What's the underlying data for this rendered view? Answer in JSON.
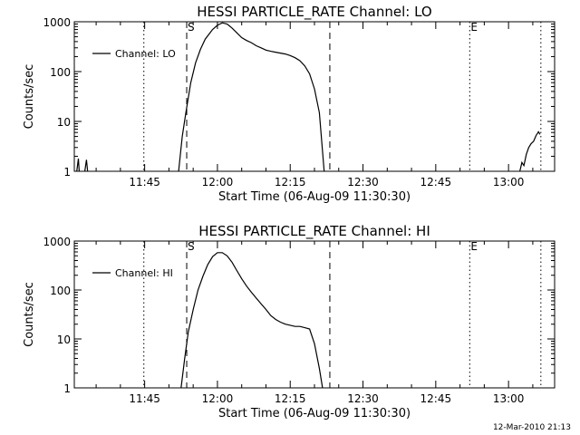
{
  "footer_timestamp": "12-Mar-2010 21:13",
  "chart_data": [
    {
      "type": "line",
      "title": "HESSI PARTICLE_RATE Channel: LO",
      "xlabel": "Start Time (06-Aug-09 11:30:30)",
      "ylabel": "Counts/sec",
      "y_scale": "log",
      "xlim": [
        "11:30:30",
        "13:09:30"
      ],
      "ylim": [
        1,
        1000
      ],
      "x_ticks": [
        "11:45",
        "12:00",
        "12:15",
        "12:30",
        "12:45",
        "13:00"
      ],
      "y_ticks": [
        "1",
        "10",
        "100",
        "1000"
      ],
      "legend": {
        "position": "top-left",
        "entries": [
          "Channel: LO"
        ]
      },
      "markers": [
        {
          "label": "S",
          "time": "11:53:40",
          "style": "dashed"
        },
        {
          "label": "",
          "time": "12:23:10",
          "style": "dashed"
        },
        {
          "label": "",
          "time": "11:44:50",
          "style": "dotted"
        },
        {
          "label": "E",
          "time": "12:52:00",
          "style": "dotted"
        },
        {
          "label": "",
          "time": "13:06:40",
          "style": "dotted"
        }
      ],
      "series": [
        {
          "name": "Channel: LO",
          "segments": [
            {
              "x": [
                "11:31:00",
                "11:31:20",
                "11:31:30"
              ],
              "y": [
                1,
                1.8,
                1
              ]
            },
            {
              "x": [
                "11:32:40",
                "11:33:00",
                "11:33:15"
              ],
              "y": [
                1,
                1.7,
                1
              ]
            },
            {
              "x": [
                "11:52:00",
                "11:52:45",
                "11:53:30",
                "11:54:30",
                "11:55:30",
                "11:56:30",
                "11:57:30",
                "11:59:00",
                "12:00:00",
                "12:01:00",
                "12:02:00",
                "12:03:00",
                "12:04:00",
                "12:05:00",
                "12:06:00",
                "12:07:00",
                "12:08:00",
                "12:09:00",
                "12:10:00",
                "12:11:00",
                "12:12:00",
                "12:13:00",
                "12:14:00",
                "12:15:00",
                "12:16:00",
                "12:17:00",
                "12:18:00",
                "12:19:00",
                "12:20:00",
                "12:21:00",
                "12:22:00"
              ],
              "y": [
                1,
                5,
                15,
                60,
                150,
                280,
                450,
                700,
                850,
                950,
                900,
                750,
                600,
                480,
                420,
                380,
                330,
                300,
                270,
                255,
                245,
                235,
                225,
                210,
                190,
                165,
                130,
                90,
                45,
                15,
                1
              ]
            },
            {
              "x": [
                "13:02:20",
                "13:02:45",
                "13:03:10",
                "13:03:40",
                "13:04:10",
                "13:04:40",
                "13:05:10",
                "13:05:40",
                "13:06:10",
                "13:06:30"
              ],
              "y": [
                1,
                1.5,
                1.3,
                2.2,
                3,
                3.6,
                4,
                5.2,
                6.2,
                5.5
              ]
            }
          ]
        }
      ]
    },
    {
      "type": "line",
      "title": "HESSI PARTICLE_RATE Channel: HI",
      "xlabel": "Start Time (06-Aug-09 11:30:30)",
      "ylabel": "Counts/sec",
      "y_scale": "log",
      "xlim": [
        "11:30:30",
        "13:09:30"
      ],
      "ylim": [
        1,
        1000
      ],
      "x_ticks": [
        "11:45",
        "12:00",
        "12:15",
        "12:30",
        "12:45",
        "13:00"
      ],
      "y_ticks": [
        "1",
        "10",
        "100",
        "1000"
      ],
      "legend": {
        "position": "top-left",
        "entries": [
          "Channel: HI"
        ]
      },
      "markers": [
        {
          "label": "S",
          "time": "11:53:40",
          "style": "dashed"
        },
        {
          "label": "",
          "time": "12:23:10",
          "style": "dashed"
        },
        {
          "label": "",
          "time": "11:44:50",
          "style": "dotted"
        },
        {
          "label": "E",
          "time": "12:52:00",
          "style": "dotted"
        },
        {
          "label": "",
          "time": "13:06:40",
          "style": "dotted"
        }
      ],
      "series": [
        {
          "name": "Channel: HI",
          "segments": [
            {
              "x": [
                "11:52:30",
                "11:53:15",
                "11:54:00",
                "11:55:00",
                "11:56:00",
                "11:57:00",
                "11:58:00",
                "11:59:00",
                "12:00:00",
                "12:01:00",
                "12:02:00",
                "12:03:00",
                "12:04:00",
                "12:05:00",
                "12:06:00",
                "12:07:00",
                "12:08:00",
                "12:09:00",
                "12:10:00",
                "12:11:00",
                "12:12:00",
                "12:13:00",
                "12:14:00",
                "12:15:00",
                "12:16:00",
                "12:17:00",
                "12:18:00",
                "12:19:00",
                "12:20:00",
                "12:21:00",
                "12:21:40"
              ],
              "y": [
                1,
                4,
                14,
                40,
                100,
                190,
                330,
                480,
                580,
                580,
                500,
                370,
                250,
                170,
                120,
                90,
                68,
                52,
                40,
                30,
                25,
                22,
                20,
                19,
                18,
                18,
                17,
                16,
                8,
                2.5,
                1
              ]
            }
          ]
        }
      ]
    }
  ]
}
